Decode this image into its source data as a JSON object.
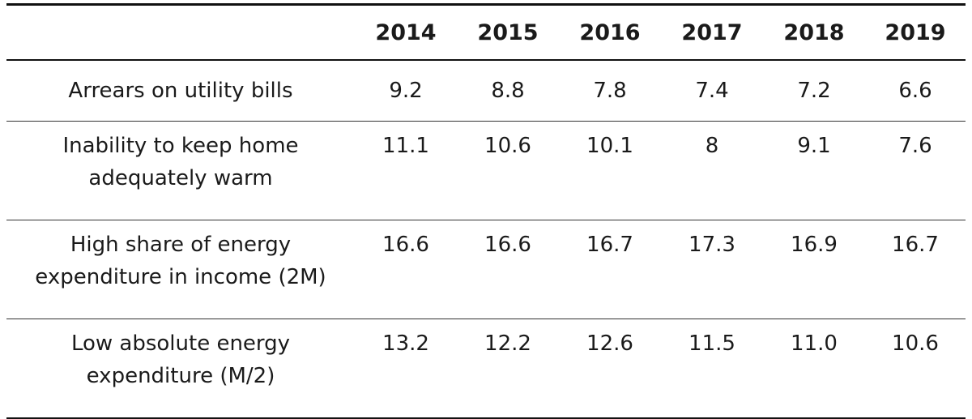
{
  "table": {
    "headers": [
      "",
      "2014",
      "2015",
      "2016",
      "2017",
      "2018",
      "2019"
    ],
    "rows": [
      {
        "label_lines": [
          "Arrears on utility bills"
        ],
        "values": [
          "9.2",
          "8.8",
          "7.8",
          "7.4",
          "7.2",
          "6.6"
        ]
      },
      {
        "label_lines": [
          "Inability to keep home",
          "adequately warm"
        ],
        "values": [
          "11.1",
          "10.6",
          "10.1",
          "8",
          "9.1",
          "7.6"
        ]
      },
      {
        "label_lines": [
          "High share of energy",
          "expenditure in income (2M)"
        ],
        "values": [
          "16.6",
          "16.6",
          "16.7",
          "17.3",
          "16.9",
          "16.7"
        ]
      },
      {
        "label_lines": [
          "Low absolute energy",
          "expenditure (M/2)"
        ],
        "values": [
          "13.2",
          "12.2",
          "12.6",
          "11.5",
          "11.0",
          "10.6"
        ]
      }
    ]
  }
}
